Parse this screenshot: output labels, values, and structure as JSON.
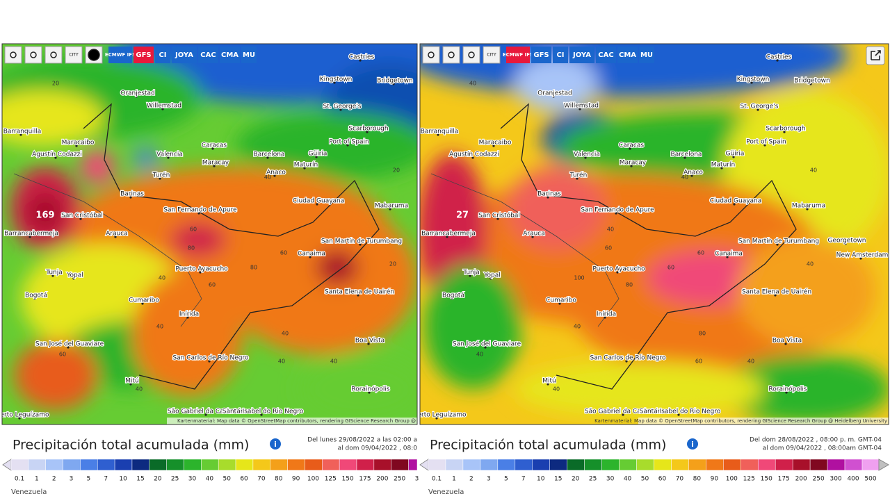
{
  "panels": [
    {
      "toolbar": [
        "CITY",
        "ECMWF IFS",
        "GFS",
        "CI",
        "JOYA",
        "CAC",
        "CMA",
        "MU"
      ],
      "cities": [
        "Castries",
        "Kingstown",
        "Bridgetown",
        "Oranjestad",
        "Willemstad",
        "St. George's",
        "Scarborough",
        "Port of Spain",
        "Barranquilla",
        "Maracaibo",
        "Caracas",
        "Barcelona",
        "Güiria",
        "Valencia",
        "Maracay",
        "Maturín",
        "Agustín Codazzi",
        "Anaco",
        "Turén",
        "Barinas",
        "Ciudad Guayana",
        "San Fernando de Apure",
        "Mabaruma",
        "San Cristóbal",
        "Barrancabermeja",
        "Arauca",
        "San Martín de Turumbang",
        "Canaima",
        "Puerto Ayacucho",
        "Tunja",
        "Yopal",
        "Bogotá",
        "Santa Elena de Uairén",
        "Cumaribo",
        "Inírida",
        "Boa Vista",
        "San José del Guaviare",
        "San Carlos de Río Negro",
        "Mitú",
        "Rorainópolis",
        "São Gabriel da Cachoeira",
        "Santa Isabel do Rio Negro",
        "Puerto Leguízamo"
      ],
      "map_values": [
        "169",
        "20",
        "20",
        "40",
        "60",
        "80",
        "60",
        "80",
        "60",
        "40",
        "40",
        "40",
        "20",
        "60",
        "40",
        "40",
        "40"
      ],
      "attribution": "Kartenmaterial: Map data © OpenStreetMap contributors, rendering GIScience Research Group @",
      "title": "Precipitación total acumulada (mm)",
      "date_range": [
        "Del lunes 29/08/2022 a las 02:00 a",
        "al dom 09/04/2022 , 08:0"
      ],
      "scale": [
        "0.1",
        "1",
        "2",
        "3",
        "5",
        "7",
        "10",
        "15",
        "20",
        "25",
        "30",
        "40",
        "50",
        "60",
        "70",
        "80",
        "90",
        "100",
        "125",
        "150",
        "175",
        "200",
        "250",
        "3"
      ],
      "footer": "Venezuela"
    },
    {
      "toolbar": [
        "CITY",
        "ECMWF IFS",
        "GFS",
        "CI",
        "JOYA",
        "CAC",
        "CMA",
        "MU"
      ],
      "cities": [
        "Castries",
        "Kingstown",
        "Bridgetown",
        "Oranjestad",
        "Willemstad",
        "St. George's",
        "Scarborough",
        "Port of Spain",
        "Barranquilla",
        "Maracaibo",
        "Caracas",
        "Barcelona",
        "Güiria",
        "Valencia",
        "Maracay",
        "Maturín",
        "Agustín Codazzi",
        "Anaco",
        "Turén",
        "Barinas",
        "Ciudad Guayana",
        "San Fernando de Apure",
        "Mabaruma",
        "San Cristóbal",
        "Barrancabermeja",
        "Arauca",
        "San Martín de Turumbang",
        "Canaima",
        "Puerto Ayacucho",
        "Tunja",
        "Yopal",
        "Bogotá",
        "Santa Elena de Uairén",
        "Cumaribo",
        "Inírida",
        "Boa Vista",
        "San José del Guaviare",
        "San Carlos de Río Negro",
        "Mitú",
        "Rorainópolis",
        "São Gabriel da Cachoeira",
        "Santa Isabel do Rio Negro",
        "Puerto Leguízamo",
        "Georgetown",
        "New Amsterdam"
      ],
      "map_values": [
        "27",
        "40",
        "40",
        "40",
        "40",
        "60",
        "60",
        "60",
        "80",
        "100",
        "80",
        "60",
        "40",
        "40",
        "40",
        "40",
        "40"
      ],
      "attribution": "Kartenmaterial: Map data © OpenStreetMap contributors, rendering GIScience Research Group @ Heidelberg University",
      "title": "Precipitación total acumulada (mm)",
      "date_range": [
        "Del dom 28/08/2022 , 08:00 p. m. GMT-04",
        "al dom 09/04/2022 , 08:00am GMT-04"
      ],
      "scale": [
        "0.1",
        "1",
        "2",
        "3",
        "5",
        "7",
        "10",
        "15",
        "20",
        "25",
        "30",
        "40",
        "50",
        "60",
        "70",
        "80",
        "90",
        "100",
        "125",
        "150",
        "175",
        "200",
        "250",
        "300",
        "400",
        "500"
      ],
      "footer": "Venezuela"
    }
  ]
}
